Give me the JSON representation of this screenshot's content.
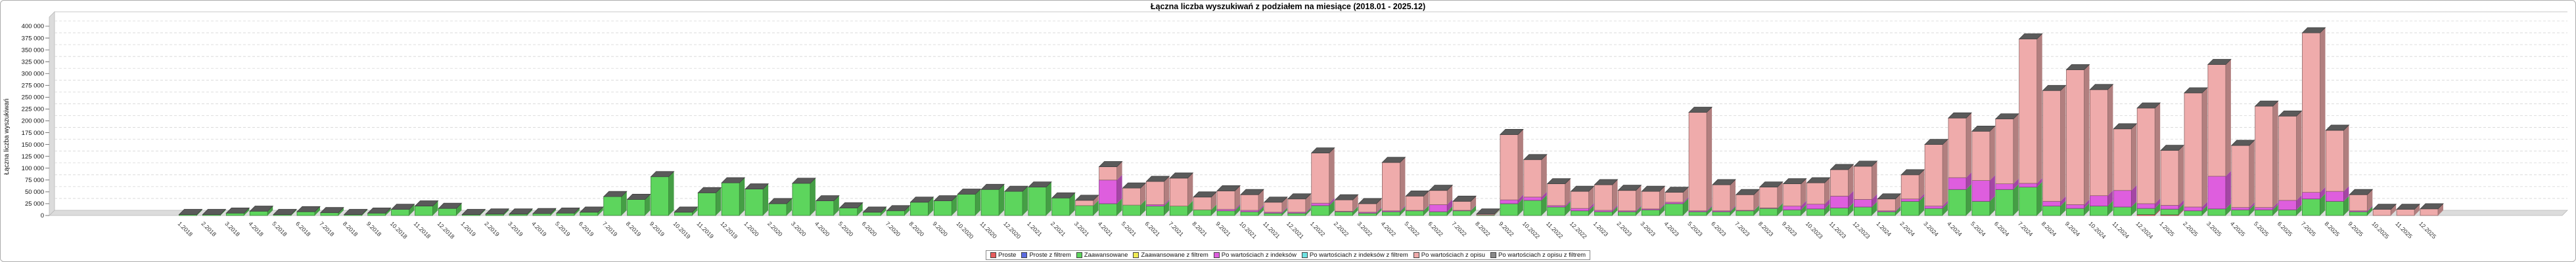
{
  "chart_data": {
    "type": "bar",
    "stacked": true,
    "effect": "3d",
    "title": "Łączna liczba wyszukiwań z podziałem na miesiące (2018.01 - 2025.12)",
    "ylabel": "Łączna liczba wyszukiwań",
    "xlabel": "",
    "ylim": [
      0,
      400000
    ],
    "ytick_step": 25000,
    "grid": "dashed-horizontal",
    "legend_position": "bottom-center",
    "categories": [
      "1.2018",
      "2.2018",
      "3.2018",
      "4.2018",
      "5.2018",
      "6.2018",
      "7.2018",
      "8.2018",
      "9.2018",
      "10.2018",
      "11.2018",
      "12.2018",
      "1.2019",
      "2.2019",
      "3.2019",
      "4.2019",
      "5.2019",
      "6.2019",
      "7.2019",
      "8.2019",
      "9.2019",
      "10.2019",
      "11.2019",
      "12.2019",
      "1.2020",
      "2.2020",
      "3.2020",
      "4.2020",
      "5.2020",
      "6.2020",
      "7.2020",
      "8.2020",
      "9.2020",
      "10.2020",
      "11.2020",
      "12.2020",
      "1.2021",
      "2.2021",
      "3.2021",
      "4.2021",
      "5.2021",
      "6.2021",
      "7.2021",
      "8.2021",
      "9.2021",
      "10.2021",
      "11.2021",
      "12.2021",
      "1.2022",
      "2.2022",
      "3.2022",
      "4.2022",
      "5.2022",
      "6.2022",
      "7.2022",
      "8.2022",
      "9.2022",
      "10.2022",
      "11.2022",
      "12.2022",
      "1.2023",
      "2.2023",
      "3.2023",
      "4.2023",
      "5.2023",
      "6.2023",
      "7.2023",
      "8.2023",
      "9.2023",
      "10.2023",
      "11.2023",
      "12.2023",
      "1.2024",
      "2.2024",
      "3.2024",
      "4.2024",
      "5.2024",
      "6.2024",
      "7.2024",
      "8.2024",
      "9.2024",
      "10.2024",
      "11.2024",
      "12.2024",
      "1.2025",
      "2.2025",
      "3.2025",
      "4.2025",
      "5.2025",
      "6.2025",
      "7.2025",
      "8.2025",
      "9.2025",
      "10.2025",
      "11.2025",
      "12.2025"
    ],
    "series": [
      {
        "name": "Proste",
        "color": "#e85c5c",
        "values": [
          0,
          0,
          0,
          0,
          0,
          0,
          0,
          0,
          0,
          0,
          0,
          0,
          0,
          0,
          0,
          0,
          0,
          0,
          0,
          0,
          0,
          0,
          0,
          0,
          0,
          0,
          0,
          0,
          0,
          0,
          0,
          0,
          0,
          0,
          0,
          0,
          0,
          0,
          0,
          0,
          0,
          0,
          0,
          0,
          0,
          0,
          0,
          0,
          0,
          0,
          0,
          0,
          0,
          0,
          0,
          0,
          0,
          0,
          0,
          0,
          0,
          0,
          0,
          0,
          0,
          0,
          0,
          0,
          0,
          0,
          0,
          0,
          0,
          0,
          0,
          0,
          0,
          0,
          0,
          0,
          0,
          0,
          0,
          2000,
          1500,
          0,
          0,
          0,
          0,
          0,
          0,
          0,
          0,
          0,
          0,
          0
        ]
      },
      {
        "name": "Proste z filtrem",
        "color": "#5c6ce0",
        "values": []
      },
      {
        "name": "Zaawansowane",
        "color": "#5dd55d",
        "values": [
          2000,
          2000,
          5000,
          9000,
          2000,
          8000,
          6000,
          2000,
          5000,
          13000,
          20000,
          15000,
          2000,
          3000,
          3000,
          4000,
          5000,
          7000,
          40000,
          34000,
          82000,
          7000,
          48000,
          69000,
          56000,
          25000,
          68000,
          31000,
          16000,
          7000,
          10000,
          28000,
          31000,
          45000,
          55000,
          51000,
          60000,
          37000,
          21000,
          25000,
          22000,
          20000,
          20000,
          12000,
          10000,
          8000,
          5000,
          5000,
          21000,
          8000,
          5000,
          8000,
          10000,
          8000,
          10000,
          1000,
          25000,
          32000,
          18000,
          10000,
          8000,
          8000,
          12000,
          25000,
          8000,
          8000,
          10000,
          15000,
          12000,
          14000,
          16000,
          18000,
          8000,
          30000,
          15000,
          55000,
          30000,
          55000,
          60000,
          20000,
          15000,
          20000,
          18000,
          13000,
          12000,
          10000,
          14000,
          12000,
          12000,
          12000,
          35000,
          30000,
          8000,
          0,
          0,
          0
        ]
      },
      {
        "name": "Zaawansowane z filtrem",
        "color": "#f0ec55",
        "values": []
      },
      {
        "name": "Po wartościach z indeksów",
        "color": "#de5ede",
        "values": [
          0,
          0,
          0,
          0,
          0,
          0,
          0,
          0,
          0,
          0,
          0,
          0,
          0,
          0,
          0,
          0,
          0,
          0,
          0,
          0,
          0,
          0,
          0,
          0,
          0,
          0,
          0,
          0,
          0,
          0,
          0,
          0,
          0,
          0,
          0,
          0,
          0,
          0,
          0,
          50000,
          0,
          3000,
          0,
          0,
          3000,
          3000,
          2000,
          2000,
          5000,
          1000,
          2000,
          2000,
          1000,
          15000,
          1000,
          0,
          8000,
          7000,
          3000,
          5000,
          3000,
          2000,
          2000,
          3000,
          2000,
          2000,
          1000,
          1000,
          8000,
          10000,
          25000,
          16000,
          2000,
          5000,
          5000,
          25000,
          44000,
          12000,
          8000,
          10000,
          8000,
          22000,
          35000,
          10000,
          8000,
          8000,
          69000,
          5000,
          5000,
          20000,
          14000,
          21000,
          2000,
          0,
          0,
          0
        ]
      },
      {
        "name": "Po wartościach z indeksów z filtrem",
        "color": "#6fe3e3",
        "values": []
      },
      {
        "name": "Po wartościach z opisu",
        "color": "#efabab",
        "values": [
          0,
          0,
          0,
          0,
          0,
          0,
          0,
          0,
          0,
          0,
          0,
          0,
          0,
          0,
          0,
          0,
          0,
          0,
          0,
          0,
          0,
          0,
          0,
          0,
          0,
          0,
          0,
          0,
          0,
          0,
          0,
          0,
          0,
          0,
          0,
          0,
          0,
          0,
          11000,
          28000,
          36000,
          49000,
          59000,
          27000,
          39000,
          33000,
          21000,
          28000,
          106000,
          24000,
          18000,
          102000,
          30000,
          30000,
          19000,
          2000,
          138000,
          79000,
          46000,
          36000,
          54000,
          43000,
          37000,
          21000,
          208000,
          55000,
          33000,
          44000,
          47000,
          45000,
          56000,
          70000,
          25000,
          51000,
          130000,
          126000,
          104000,
          137000,
          305000,
          234000,
          285000,
          224000,
          130000,
          202000,
          116000,
          241000,
          236000,
          131000,
          214000,
          178000,
          337000,
          129000,
          34000,
          13000,
          13000,
          14000
        ]
      },
      {
        "name": "Po wartościach z opisu z filtrem",
        "color": "#8a8a8a",
        "values": []
      }
    ]
  }
}
